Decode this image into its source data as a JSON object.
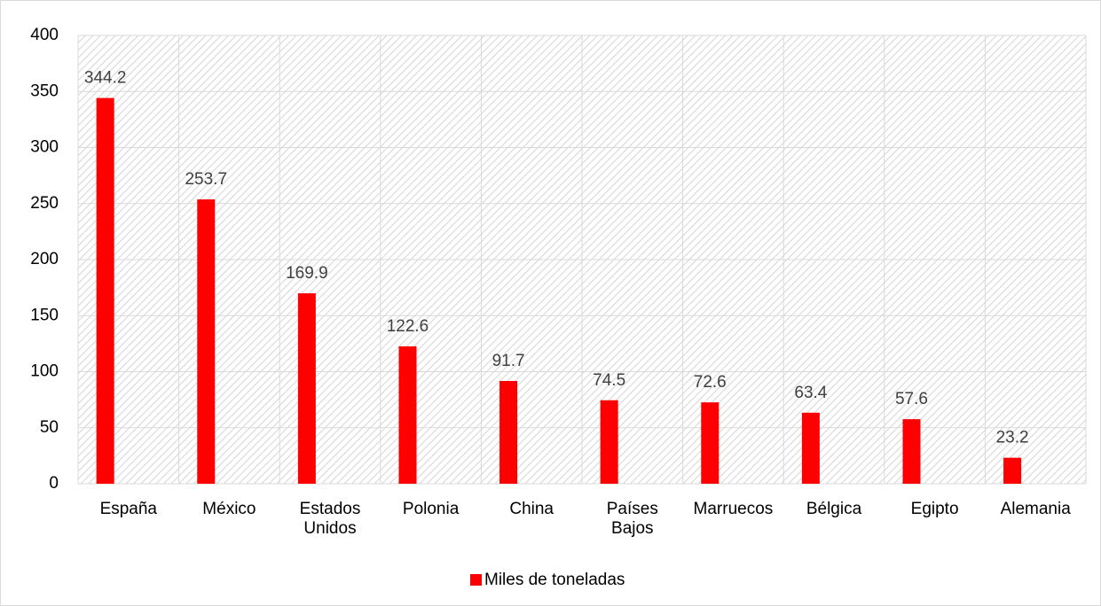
{
  "chart_data": {
    "type": "bar",
    "categories": [
      "España",
      "México",
      "Estados Unidos",
      "Polonia",
      "China",
      "Países Bajos",
      "Marruecos",
      "Bélgica",
      "Egipto",
      "Alemania"
    ],
    "series": [
      {
        "name": "Miles de toneladas",
        "color": "#ff0000",
        "values": [
          344.2,
          253.7,
          169.9,
          122.6,
          91.7,
          74.5,
          72.6,
          63.4,
          57.6,
          23.2
        ]
      }
    ],
    "ylim": [
      0,
      400
    ],
    "yticks": [
      0,
      50,
      100,
      150,
      200,
      250,
      300,
      350,
      400
    ],
    "grid": true,
    "legend": "bottom"
  }
}
